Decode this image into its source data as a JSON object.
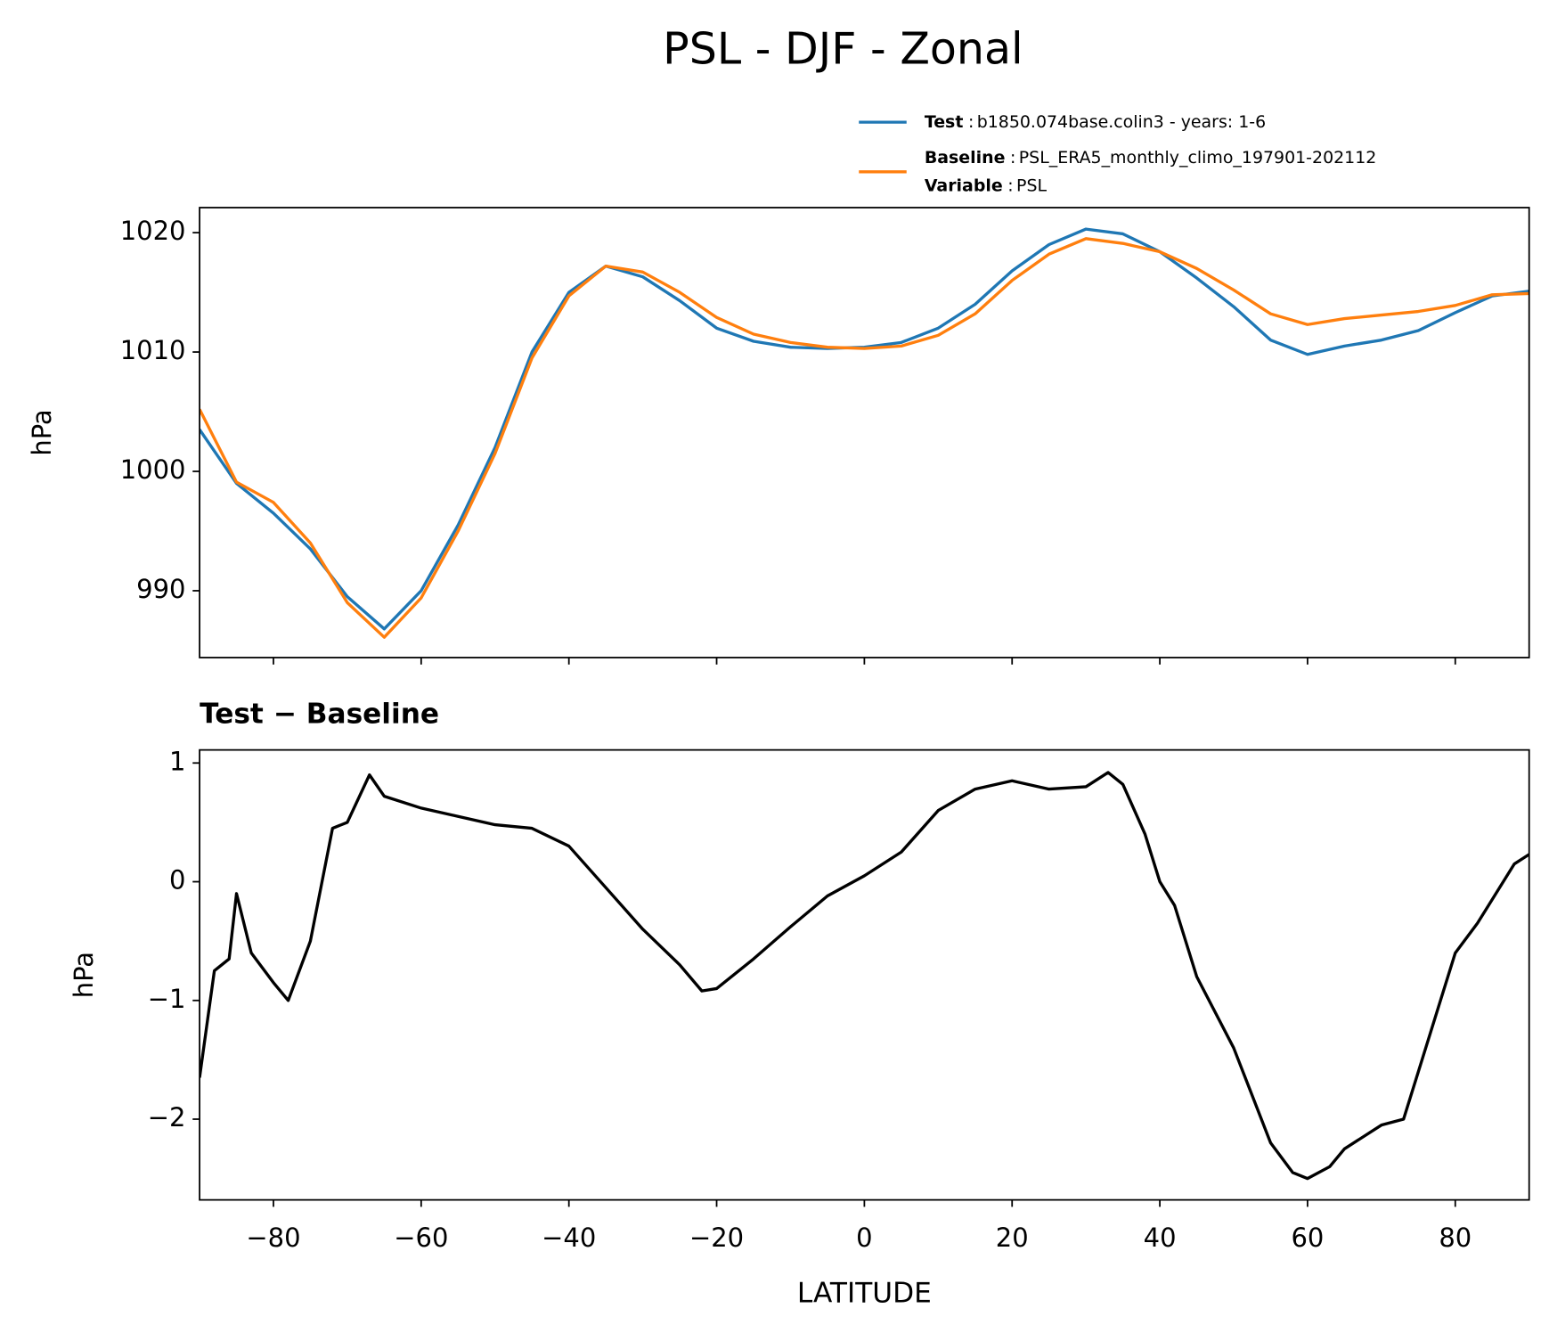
{
  "title": "PSL - DJF - Zonal",
  "chart_data": [
    {
      "type": "line",
      "ylabel": "hPa",
      "legend": {
        "separator": ":",
        "extra": {
          "name": "Variable",
          "label": "PSL"
        }
      },
      "x": [
        -90,
        -85,
        -80,
        -75,
        -70,
        -65,
        -60,
        -55,
        -50,
        -45,
        -40,
        -35,
        -30,
        -25,
        -20,
        -15,
        -10,
        -5,
        0,
        5,
        10,
        15,
        20,
        25,
        30,
        35,
        40,
        45,
        50,
        55,
        60,
        65,
        70,
        75,
        80,
        85,
        90
      ],
      "series": [
        {
          "name": "Test",
          "label": "b1850.074base.colin3 - years: 1-6",
          "color": "#1f77b4",
          "values": [
            1003.5,
            999,
            996.5,
            993.5,
            989.5,
            986.8,
            990,
            995.5,
            1002,
            1010,
            1015,
            1017.2,
            1016.3,
            1014.3,
            1012,
            1010.9,
            1010.4,
            1010.3,
            1010.4,
            1010.8,
            1012,
            1014,
            1016.8,
            1019,
            1020.3,
            1019.9,
            1018.4,
            1016.2,
            1013.8,
            1011,
            1009.8,
            1010.5,
            1011,
            1011.8,
            1013.3,
            1014.7,
            1015.1
          ]
        },
        {
          "name": "Baseline",
          "label": "PSL_ERA5_monthly_climo_197901-202112",
          "color": "#ff7f0e",
          "values": [
            1005.2,
            999.1,
            997.4,
            994.0,
            989.0,
            986.1,
            989.4,
            995.0,
            1001.5,
            1009.5,
            1014.7,
            1017.2,
            1016.7,
            1015.0,
            1012.9,
            1011.5,
            1010.8,
            1010.4,
            1010.3,
            1010.5,
            1011.4,
            1013.2,
            1016.0,
            1018.2,
            1019.5,
            1019.1,
            1018.4,
            1017.0,
            1015.2,
            1013.2,
            1012.3,
            1012.8,
            1013.1,
            1013.4,
            1013.9,
            1014.8,
            1014.9
          ]
        }
      ],
      "xlim": [
        -90,
        90
      ],
      "xticks": [
        -80,
        -60,
        -40,
        -20,
        0,
        20,
        40,
        60,
        80
      ],
      "ylim": [
        984.4,
        1022.1
      ],
      "yticks": [
        990,
        1000,
        1010,
        1020
      ]
    },
    {
      "type": "line",
      "title": "Test − Baseline",
      "ylabel": "hPa",
      "xlabel": "LATITUDE",
      "x": [
        -90,
        -88,
        -86,
        -85,
        -83,
        -80,
        -78,
        -75,
        -72,
        -70,
        -67,
        -65,
        -60,
        -55,
        -50,
        -45,
        -40,
        -35,
        -30,
        -25,
        -22,
        -20,
        -15,
        -10,
        -5,
        0,
        5,
        10,
        15,
        20,
        25,
        30,
        33,
        35,
        38,
        40,
        42,
        45,
        50,
        55,
        58,
        60,
        63,
        65,
        70,
        73,
        75,
        78,
        80,
        83,
        85,
        88,
        90
      ],
      "series": [
        {
          "name": "Test − Baseline",
          "color": "#000000",
          "values": [
            -1.65,
            -0.75,
            -0.65,
            -0.1,
            -0.6,
            -0.85,
            -1.0,
            -0.5,
            0.45,
            0.5,
            0.9,
            0.72,
            0.62,
            0.55,
            0.48,
            0.45,
            0.3,
            -0.05,
            -0.4,
            -0.7,
            -0.92,
            -0.9,
            -0.65,
            -0.38,
            -0.12,
            0.05,
            0.25,
            0.6,
            0.78,
            0.85,
            0.78,
            0.8,
            0.92,
            0.82,
            0.4,
            0.0,
            -0.2,
            -0.8,
            -1.4,
            -2.2,
            -2.45,
            -2.5,
            -2.4,
            -2.25,
            -2.05,
            -2.0,
            -1.6,
            -1.0,
            -0.6,
            -0.35,
            -0.15,
            0.15,
            0.23
          ]
        }
      ],
      "xlim": [
        -90,
        90
      ],
      "xticks": [
        {
          "value": -80,
          "label": "−80"
        },
        {
          "value": -60,
          "label": "−60"
        },
        {
          "value": -40,
          "label": "−40"
        },
        {
          "value": -20,
          "label": "−20"
        },
        0,
        20,
        40,
        60,
        80
      ],
      "ylim": [
        -2.68,
        1.11
      ],
      "yticks": [
        {
          "value": -2,
          "label": "−2"
        },
        {
          "value": -1,
          "label": "−1"
        },
        0,
        1
      ]
    }
  ]
}
